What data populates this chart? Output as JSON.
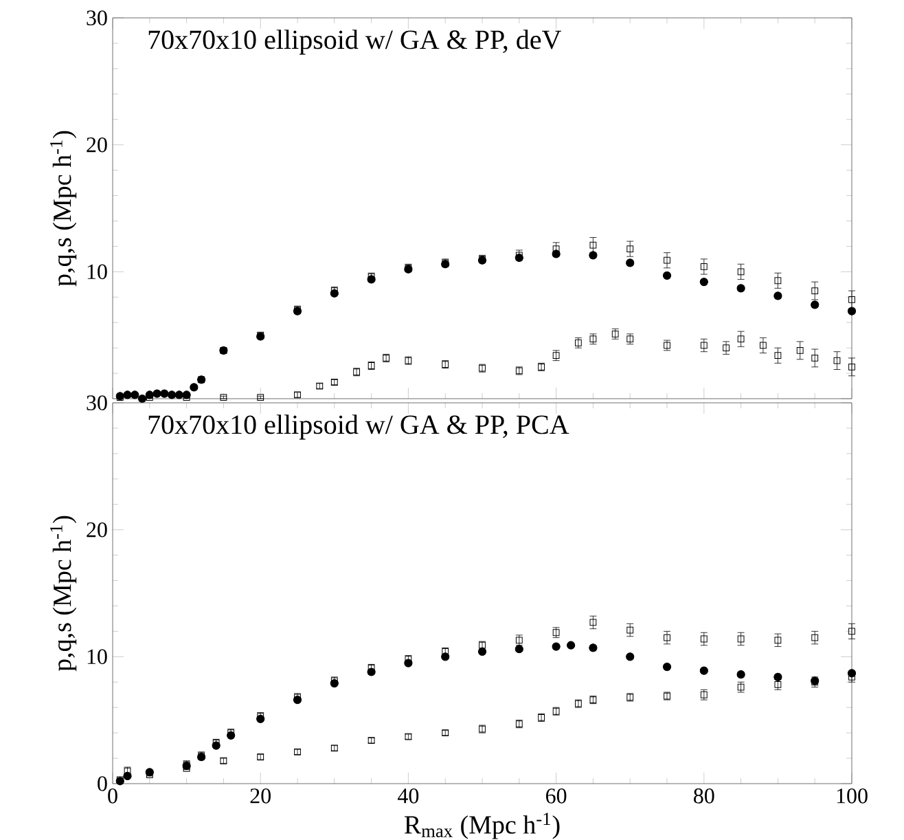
{
  "chart_data": [
    {
      "type": "scatter",
      "title": "70x70x10 ellipsoid w/ GA & PP, deV",
      "ylabel": "p,q,s (Mpc h$^{-1}$)",
      "xlim": [
        0,
        100
      ],
      "ylim": [
        0,
        30
      ],
      "xticks": [
        0,
        20,
        40,
        60,
        80,
        100
      ],
      "yticks": [
        {
          "value": 0,
          "label": null
        },
        10,
        20,
        30
      ],
      "tick_labels": "y",
      "series": [
        {
          "color": "#000000",
          "marker": "circle",
          "x": [
            1,
            2,
            3,
            4,
            5,
            6,
            7,
            8,
            9,
            10,
            11,
            12,
            15,
            20,
            25,
            30,
            35,
            40,
            45,
            50,
            55,
            60,
            65,
            70,
            75,
            80,
            85,
            90,
            95,
            100
          ],
          "values": [
            0.2,
            0.3,
            0.3,
            0.0,
            0.3,
            0.4,
            0.4,
            0.3,
            0.3,
            0.3,
            0.9,
            1.5,
            3.8,
            4.9,
            6.9,
            8.3,
            9.4,
            10.2,
            10.6,
            10.9,
            11.1,
            11.4,
            11.3,
            10.7,
            9.7,
            9.2,
            8.7,
            8.1,
            7.4,
            6.9
          ]
        },
        {
          "color": "#000000",
          "marker": "square",
          "x": [
            12,
            15,
            20,
            25,
            30,
            35,
            40,
            45,
            50,
            55,
            60,
            65,
            70,
            75,
            80,
            85,
            90,
            95,
            100
          ],
          "values": [
            1.5,
            3.8,
            5.0,
            7.0,
            8.5,
            9.6,
            10.3,
            10.7,
            11.0,
            11.3,
            11.8,
            12.1,
            11.8,
            10.9,
            10.4,
            10.0,
            9.3,
            8.5,
            7.8
          ],
          "errors": [
            0.2,
            0.2,
            0.2,
            0.3,
            0.3,
            0.3,
            0.3,
            0.3,
            0.3,
            0.4,
            0.5,
            0.6,
            0.6,
            0.6,
            0.6,
            0.6,
            0.6,
            0.7,
            0.7
          ]
        },
        {
          "color": "#000000",
          "marker": "square",
          "x": [
            1,
            5,
            10,
            15,
            20,
            25,
            28,
            30,
            33,
            35,
            37,
            40,
            45,
            50,
            55,
            58,
            60,
            63,
            65,
            68,
            70,
            75,
            80,
            83,
            85,
            88,
            90,
            93,
            95,
            98,
            100
          ],
          "values": [
            0.1,
            0.1,
            0.1,
            0.1,
            0.1,
            0.3,
            1.0,
            1.3,
            2.1,
            2.6,
            3.2,
            3.0,
            2.7,
            2.4,
            2.2,
            2.5,
            3.4,
            4.4,
            4.7,
            5.1,
            4.7,
            4.2,
            4.2,
            4.0,
            4.7,
            4.2,
            3.4,
            3.8,
            3.2,
            3.0,
            2.5
          ],
          "errors": [
            0.05,
            0.05,
            0.05,
            0.1,
            0.1,
            0.2,
            0.2,
            0.2,
            0.3,
            0.3,
            0.3,
            0.3,
            0.3,
            0.3,
            0.3,
            0.3,
            0.4,
            0.4,
            0.4,
            0.4,
            0.4,
            0.4,
            0.5,
            0.5,
            0.6,
            0.6,
            0.6,
            0.7,
            0.7,
            0.7,
            0.7
          ]
        }
      ]
    },
    {
      "type": "scatter",
      "title": "70x70x10 ellipsoid w/ GA & PP, PCA",
      "xlabel": "R$_{max}$ (Mpc h$^{-1}$)",
      "ylabel": "p,q,s (Mpc h$^{-1}$)",
      "xlim": [
        0,
        100
      ],
      "ylim": [
        0,
        30
      ],
      "xticks": [
        0,
        20,
        40,
        60,
        80,
        100
      ],
      "yticks": [
        0,
        10,
        20,
        30
      ],
      "series": [
        {
          "color": "#000000",
          "marker": "circle",
          "x": [
            1,
            2,
            5,
            10,
            12,
            14,
            16,
            20,
            25,
            30,
            35,
            40,
            45,
            50,
            55,
            60,
            62,
            65,
            70,
            75,
            80,
            85,
            90,
            95,
            100
          ],
          "values": [
            0.2,
            0.6,
            0.9,
            1.4,
            2.1,
            3.0,
            3.8,
            5.1,
            6.6,
            7.9,
            8.8,
            9.5,
            10.0,
            10.4,
            10.6,
            10.8,
            10.9,
            10.7,
            10.0,
            9.2,
            8.9,
            8.6,
            8.4,
            8.1,
            8.7
          ]
        },
        {
          "color": "#000000",
          "marker": "square",
          "x": [
            2,
            10,
            12,
            14,
            16,
            20,
            25,
            30,
            35,
            40,
            45,
            50,
            55,
            60,
            65,
            70,
            75,
            80,
            85,
            90,
            95,
            100
          ],
          "values": [
            1.0,
            1.5,
            2.2,
            3.2,
            4.0,
            5.3,
            6.8,
            8.1,
            9.1,
            9.8,
            10.4,
            10.9,
            11.3,
            11.9,
            12.7,
            12.1,
            11.5,
            11.4,
            11.4,
            11.3,
            11.5,
            12.0
          ],
          "errors": [
            0.3,
            0.3,
            0.3,
            0.3,
            0.3,
            0.3,
            0.3,
            0.3,
            0.3,
            0.3,
            0.3,
            0.3,
            0.4,
            0.4,
            0.5,
            0.5,
            0.5,
            0.5,
            0.5,
            0.5,
            0.5,
            0.6
          ]
        },
        {
          "color": "#000000",
          "marker": "square",
          "x": [
            1,
            5,
            10,
            15,
            20,
            25,
            30,
            35,
            40,
            45,
            50,
            55,
            58,
            60,
            63,
            65,
            70,
            75,
            80,
            85,
            90,
            95,
            100
          ],
          "values": [
            0.3,
            0.7,
            1.2,
            1.8,
            2.1,
            2.5,
            2.8,
            3.4,
            3.7,
            4.0,
            4.3,
            4.7,
            5.2,
            5.7,
            6.3,
            6.6,
            6.8,
            6.9,
            7.0,
            7.6,
            7.8,
            8.0,
            8.4
          ],
          "errors": [
            0.1,
            0.1,
            0.1,
            0.2,
            0.2,
            0.2,
            0.2,
            0.2,
            0.2,
            0.2,
            0.3,
            0.3,
            0.3,
            0.3,
            0.3,
            0.3,
            0.3,
            0.3,
            0.4,
            0.4,
            0.4,
            0.4,
            0.4
          ]
        }
      ]
    }
  ]
}
